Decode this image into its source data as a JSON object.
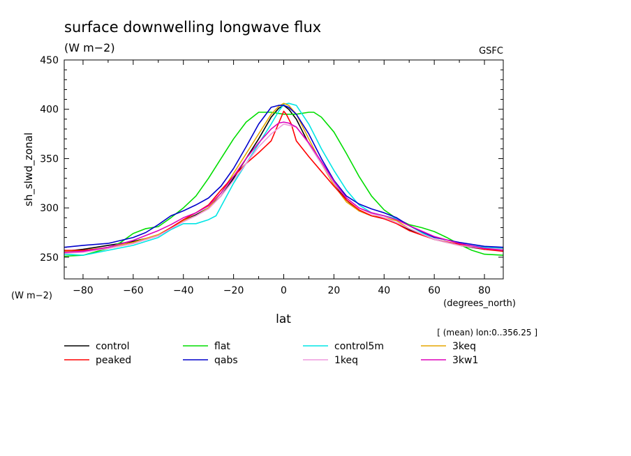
{
  "chart_data": {
    "type": "line",
    "title": "surface downwelling longwave flux",
    "subtitle": "(W m−2)",
    "source_label": "GSFC",
    "ylabel": "sh_slwd_zonal",
    "y_units": "(W m−2)",
    "xlabel": "lat",
    "x_units": "(degrees_north)",
    "averaging_note": "[ (mean) lon:0..356.25 ]",
    "xlim": [
      -87.5,
      87.5
    ],
    "ylim": [
      228,
      450
    ],
    "xticks": [
      -80,
      -60,
      -40,
      -20,
      0,
      20,
      40,
      60,
      80
    ],
    "xtick_labels": [
      "−80",
      "−60",
      "−40",
      "−20",
      "0",
      "20",
      "40",
      "60",
      "80"
    ],
    "yticks": [
      250,
      300,
      350,
      400,
      450
    ],
    "ytick_labels": [
      "250",
      "300",
      "350",
      "400",
      "450"
    ],
    "grid": false,
    "legend_position": "bottom",
    "series": [
      {
        "name": "control",
        "color": "#000000",
        "x": [
          -87.5,
          -80,
          -70,
          -60,
          -50,
          -45,
          -40,
          -35,
          -30,
          -25,
          -20,
          -15,
          -10,
          -5,
          -2,
          0,
          2,
          5,
          10,
          15,
          20,
          25,
          30,
          35,
          40,
          45,
          50,
          60,
          70,
          80,
          87.5
        ],
        "y": [
          256,
          258,
          262,
          266,
          272,
          280,
          287,
          293,
          300,
          312,
          330,
          350,
          370,
          392,
          401,
          404,
          400,
          390,
          365,
          345,
          325,
          308,
          297,
          292,
          289,
          285,
          278,
          268,
          262,
          258,
          257
        ]
      },
      {
        "name": "flat",
        "color": "#00dd00",
        "x": [
          -87.5,
          -80,
          -70,
          -65,
          -60,
          -55,
          -50,
          -45,
          -40,
          -35,
          -30,
          -25,
          -20,
          -15,
          -10,
          -5,
          0,
          5,
          10,
          12,
          15,
          20,
          25,
          30,
          35,
          40,
          45,
          50,
          55,
          60,
          65,
          70,
          75,
          80,
          87.5
        ],
        "y": [
          251,
          252,
          259,
          265,
          274,
          279,
          281,
          290,
          300,
          312,
          330,
          350,
          370,
          387,
          397,
          397,
          395,
          395,
          397,
          397,
          392,
          377,
          355,
          332,
          312,
          298,
          289,
          283,
          280,
          276,
          270,
          263,
          257,
          253,
          252
        ]
      },
      {
        "name": "control5m",
        "color": "#00e5e5",
        "x": [
          -87.5,
          -80,
          -70,
          -60,
          -50,
          -45,
          -40,
          -35,
          -30,
          -27,
          -20,
          -15,
          -10,
          -5,
          -2,
          0,
          2,
          5,
          10,
          15,
          20,
          25,
          30,
          35,
          40,
          45,
          50,
          60,
          70,
          80,
          87.5
        ],
        "y": [
          253,
          252,
          257,
          262,
          270,
          278,
          284,
          284,
          288,
          292,
          325,
          345,
          365,
          385,
          398,
          405,
          406,
          404,
          385,
          360,
          338,
          318,
          303,
          295,
          292,
          289,
          282,
          268,
          263,
          260,
          259
        ]
      },
      {
        "name": "3keq",
        "color": "#e5a500",
        "x": [
          -87.5,
          -80,
          -70,
          -60,
          -50,
          -45,
          -40,
          -35,
          -30,
          -25,
          -20,
          -15,
          -10,
          -5,
          -2,
          0,
          2,
          5,
          10,
          15,
          20,
          25,
          30,
          35,
          40,
          45,
          50,
          60,
          70,
          80,
          87.5
        ],
        "y": [
          256,
          257,
          260,
          265,
          273,
          280,
          287,
          292,
          300,
          315,
          335,
          355,
          375,
          395,
          403,
          406,
          404,
          395,
          370,
          345,
          323,
          306,
          297,
          292,
          290,
          287,
          279,
          268,
          262,
          259,
          258
        ]
      },
      {
        "name": "peaked",
        "color": "#ff0000",
        "x": [
          -87.5,
          -80,
          -70,
          -60,
          -50,
          -45,
          -40,
          -35,
          -30,
          -25,
          -20,
          -15,
          -10,
          -5,
          -3,
          0,
          1,
          3,
          5,
          10,
          15,
          20,
          25,
          30,
          35,
          40,
          45,
          50,
          60,
          70,
          80,
          87.5
        ],
        "y": [
          257,
          257,
          259,
          264,
          272,
          280,
          288,
          295,
          303,
          318,
          332,
          345,
          356,
          368,
          380,
          398,
          395,
          385,
          368,
          352,
          337,
          322,
          308,
          298,
          292,
          289,
          284,
          277,
          268,
          263,
          258,
          256
        ]
      },
      {
        "name": "qabs",
        "color": "#0000cc",
        "x": [
          -87.5,
          -80,
          -70,
          -60,
          -55,
          -50,
          -45,
          -40,
          -35,
          -30,
          -25,
          -20,
          -15,
          -10,
          -5,
          -2,
          0,
          2,
          5,
          10,
          15,
          20,
          25,
          30,
          35,
          40,
          45,
          50,
          60,
          70,
          80,
          87.5
        ],
        "y": [
          260,
          262,
          264,
          270,
          275,
          283,
          292,
          297,
          303,
          310,
          322,
          340,
          362,
          385,
          402,
          404,
          404,
          402,
          395,
          375,
          350,
          328,
          312,
          304,
          299,
          295,
          290,
          282,
          270,
          265,
          261,
          260
        ]
      },
      {
        "name": "1keq",
        "color": "#ee99dd",
        "x": [
          -87.5,
          -80,
          -70,
          -60,
          -50,
          -45,
          -40,
          -35,
          -30,
          -25,
          -20,
          -15,
          -10,
          -5,
          0,
          5,
          10,
          15,
          20,
          25,
          30,
          35,
          40,
          45,
          50,
          60,
          70,
          80,
          87.5
        ],
        "y": [
          254,
          255,
          259,
          264,
          272,
          279,
          286,
          292,
          299,
          312,
          328,
          345,
          362,
          375,
          385,
          382,
          365,
          345,
          325,
          310,
          300,
          294,
          290,
          285,
          279,
          268,
          262,
          259,
          258
        ]
      },
      {
        "name": "3kw1",
        "color": "#dd00bb",
        "x": [
          -87.5,
          -80,
          -70,
          -60,
          -50,
          -45,
          -40,
          -35,
          -30,
          -25,
          -20,
          -15,
          -10,
          -5,
          -2,
          0,
          2,
          5,
          10,
          15,
          20,
          25,
          30,
          35,
          40,
          45,
          50,
          60,
          70,
          80,
          87.5
        ],
        "y": [
          255,
          256,
          260,
          267,
          277,
          283,
          290,
          295,
          302,
          315,
          332,
          350,
          366,
          380,
          386,
          387,
          386,
          382,
          366,
          347,
          327,
          310,
          300,
          295,
          292,
          288,
          282,
          271,
          264,
          259,
          257
        ]
      }
    ],
    "legend": [
      {
        "series": 0,
        "col": 0,
        "row": 0
      },
      {
        "series": 1,
        "col": 1,
        "row": 0
      },
      {
        "series": 2,
        "col": 2,
        "row": 0
      },
      {
        "series": 3,
        "col": 3,
        "row": 0
      },
      {
        "series": 4,
        "col": 0,
        "row": 1
      },
      {
        "series": 5,
        "col": 1,
        "row": 1
      },
      {
        "series": 6,
        "col": 2,
        "row": 1
      },
      {
        "series": 7,
        "col": 3,
        "row": 1
      }
    ]
  }
}
